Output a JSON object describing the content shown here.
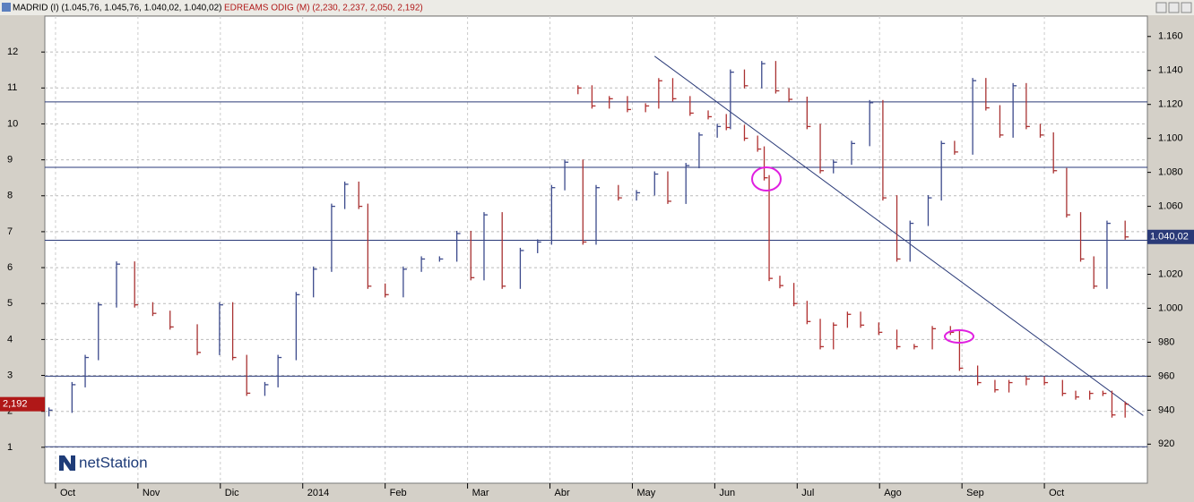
{
  "chart_data": {
    "type": "ohlc",
    "header": [
      "MADRID (I) (1.045,76, 1.045,76, 1.040,02, 1.040,02)",
      "EDREAMS ODIG (M) (2,230, 2,237, 2,050, 2,192)"
    ],
    "logo": "netStation",
    "xlim": [
      -0.13,
      13.25
    ],
    "xticks": [
      {
        "value": 0,
        "label": "Oct"
      },
      {
        "value": 1,
        "label": "Nov"
      },
      {
        "value": 2,
        "label": "Dic"
      },
      {
        "value": 3,
        "label": "2014"
      },
      {
        "value": 4,
        "label": "Feb"
      },
      {
        "value": 5,
        "label": "Mar"
      },
      {
        "value": 6,
        "label": "Abr"
      },
      {
        "value": 7,
        "label": "May"
      },
      {
        "value": 8,
        "label": "Jun"
      },
      {
        "value": 9,
        "label": "Jul"
      },
      {
        "value": 10,
        "label": "Ago"
      },
      {
        "value": 11,
        "label": "Sep"
      },
      {
        "value": 12,
        "label": "Oct"
      }
    ],
    "ylim": [
      0,
      13
    ],
    "yticks": [
      1,
      2,
      3,
      4,
      5,
      6,
      7,
      8,
      9,
      10,
      11,
      12
    ],
    "y2lim": [
      897,
      1172
    ],
    "y2ticks": [
      920,
      940,
      960,
      980,
      {
        "value": 1000,
        "label": "1.000"
      },
      {
        "value": 1020,
        "label": "1.020"
      },
      {
        "value": 1040,
        "label": "1.040"
      },
      {
        "value": 1060,
        "label": "1.060"
      },
      {
        "value": 1080,
        "label": "1.080"
      },
      {
        "value": 1100,
        "label": "1.100"
      },
      {
        "value": 1120,
        "label": "1.120"
      },
      {
        "value": 1140,
        "label": "1.140"
      },
      {
        "value": 1160,
        "label": "1.160"
      }
    ],
    "grid": true,
    "hlines": [
      1121.5,
      1083,
      1040.02,
      960,
      918.5
    ],
    "trendline": {
      "x": [
        7.27,
        13.2
      ],
      "y2": [
        1148.4,
        936.8
      ]
    },
    "series": [
      {
        "name": "MADRID (I)",
        "axis": "y2",
        "up_color": "#3c4a8c",
        "down_color": "#a83232",
        "last_label": "1.040,02",
        "x": [
          -0.08,
          0.2,
          0.36,
          0.52,
          0.74,
          0.96,
          1.18,
          1.39,
          1.72,
          1.99,
          2.15,
          2.32,
          2.54,
          2.7,
          2.92,
          3.13,
          3.35,
          3.51,
          3.68,
          3.79,
          4.0,
          4.22,
          4.44,
          4.66,
          4.87,
          5.04,
          5.2,
          5.42,
          5.64,
          5.85,
          6.02,
          6.18,
          6.4,
          6.56,
          6.83,
          7.05,
          7.27,
          7.43,
          7.65,
          7.81,
          8.03,
          8.19,
          8.36,
          8.57,
          8.74,
          8.9,
          9.12,
          9.28,
          9.44,
          9.66,
          9.88,
          10.04,
          10.21,
          10.37,
          10.59,
          10.75,
          10.91,
          11.13,
          11.29,
          11.46,
          11.62,
          11.78,
          11.95,
          12.11,
          12.27,
          12.44,
          12.6,
          12.76,
          12.98
        ],
        "values": [
          940,
          955,
          971,
          1002,
          1026,
          1002,
          997,
          989,
          974,
          1002,
          971,
          950,
          955,
          971,
          1008,
          1023,
          1060,
          1073,
          1060,
          1013,
          1008,
          1023,
          1029,
          1029,
          1044,
          1018,
          1055,
          1013,
          1034,
          1039,
          1071,
          1086,
          1039,
          1071,
          1065,
          1068,
          1079,
          1063,
          1084,
          1102,
          1107,
          1139,
          1131,
          1144,
          1128,
          1123,
          1107,
          1081,
          1086,
          1097,
          1121,
          1065,
          1029,
          1050,
          1065,
          1097,
          1092,
          1134,
          1118,
          1102,
          1131,
          1107,
          1102,
          1081,
          1055,
          1029,
          1013,
          1050,
          1042
        ]
      },
      {
        "name": "EDREAMS ODIG (M)",
        "axis": "y",
        "color": "#b03030",
        "last_label": "2,192",
        "x": [
          6.34,
          6.51,
          6.72,
          6.94,
          7.16,
          7.32,
          7.49,
          7.7,
          7.92,
          8.14,
          8.36,
          8.52,
          8.6,
          8.66,
          8.79,
          8.96,
          9.12,
          9.28,
          9.44,
          9.61,
          9.77,
          9.99,
          10.21,
          10.42,
          10.64,
          10.86,
          10.97,
          11.19,
          11.4,
          11.57,
          11.78,
          12.0,
          12.22,
          12.38,
          12.55,
          12.71,
          12.82,
          12.98
        ],
        "values": [
          11.0,
          10.5,
          10.7,
          10.4,
          10.5,
          11.2,
          10.7,
          10.3,
          10.2,
          9.9,
          9.6,
          9.3,
          8.5,
          5.7,
          5.5,
          5.0,
          4.5,
          3.8,
          4.4,
          4.7,
          4.4,
          4.2,
          3.8,
          3.8,
          4.3,
          4.2,
          3.2,
          2.8,
          2.6,
          2.8,
          2.9,
          2.8,
          2.5,
          2.4,
          2.5,
          2.5,
          1.9,
          2.2
        ]
      }
    ]
  }
}
